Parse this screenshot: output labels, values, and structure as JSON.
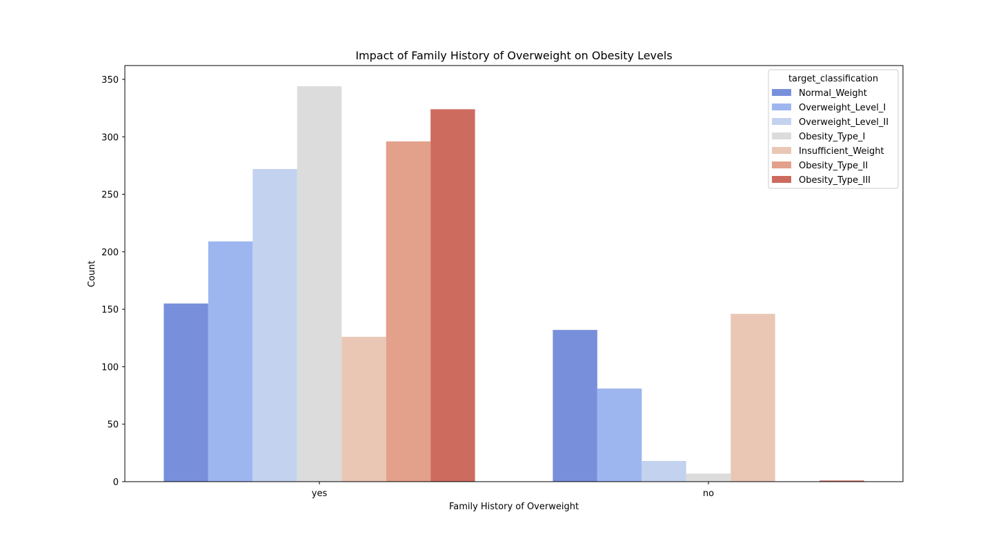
{
  "chart_data": {
    "type": "bar",
    "title": "Impact of Family History of Overweight on Obesity Levels",
    "xlabel": "Family History of Overweight",
    "ylabel": "Count",
    "categories": [
      "yes",
      "no"
    ],
    "ylim": [
      0,
      362
    ],
    "yticks": [
      0,
      50,
      100,
      150,
      200,
      250,
      300,
      350
    ],
    "grid": false,
    "legend": {
      "title": "target_classification",
      "placement": "top-right"
    },
    "series": [
      {
        "name": "Normal_Weight",
        "color": "#7890db",
        "values": [
          155,
          132
        ]
      },
      {
        "name": "Overweight_Level_I",
        "color": "#9db6f0",
        "values": [
          209,
          81
        ]
      },
      {
        "name": "Overweight_Level_II",
        "color": "#c2d2ef",
        "values": [
          272,
          18
        ]
      },
      {
        "name": "Obesity_Type_I",
        "color": "#dcdcdc",
        "values": [
          344,
          7
        ]
      },
      {
        "name": "Insufficient_Weight",
        "color": "#eac7b5",
        "values": [
          126,
          146
        ]
      },
      {
        "name": "Obesity_Type_II",
        "color": "#e3a08a",
        "values": [
          296,
          0
        ]
      },
      {
        "name": "Obesity_Type_III",
        "color": "#cd6b5f",
        "values": [
          324,
          1
        ]
      }
    ]
  }
}
